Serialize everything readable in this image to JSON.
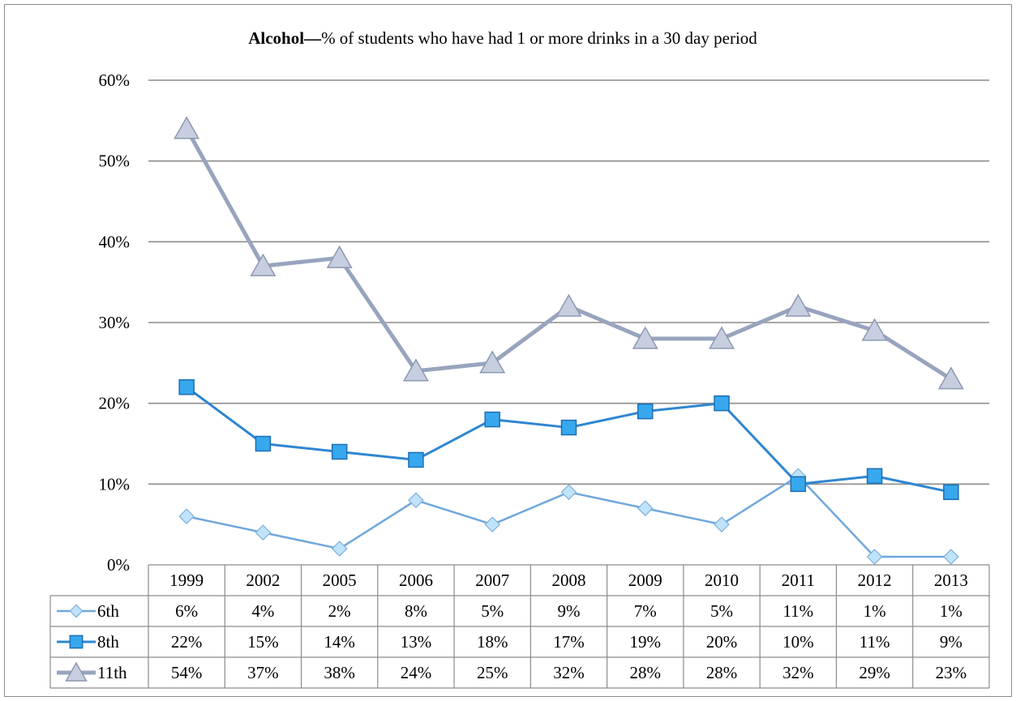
{
  "chart_data": {
    "type": "line",
    "title_bold": "Alcohol",
    "title_dash": "—",
    "title_rest": "% of students who have had 1 or more drinks in a 30 day period",
    "categories": [
      "1999",
      "2002",
      "2005",
      "2006",
      "2007",
      "2008",
      "2009",
      "2010",
      "2011",
      "2012",
      "2013"
    ],
    "ylim": [
      0,
      60
    ],
    "yticks": [
      0,
      10,
      20,
      30,
      40,
      50,
      60
    ],
    "ytick_labels": [
      "0%",
      "10%",
      "20%",
      "30%",
      "40%",
      "50%",
      "60%"
    ],
    "grid": true,
    "legend": "data table",
    "series": [
      {
        "name": "6th",
        "marker": "diamond",
        "line_color": "#6fa8dc",
        "fill_color": "#bfe3fb",
        "line_width": 2.5,
        "values": [
          6,
          4,
          2,
          8,
          5,
          9,
          7,
          5,
          11,
          1,
          1
        ],
        "labels": [
          "6%",
          "4%",
          "2%",
          "8%",
          "5%",
          "9%",
          "7%",
          "5%",
          "11%",
          "1%",
          "1%"
        ]
      },
      {
        "name": "8th",
        "marker": "square",
        "line_color": "#2f86d1",
        "fill_color": "#37a8ee",
        "line_width": 3,
        "values": [
          22,
          15,
          14,
          13,
          18,
          17,
          19,
          20,
          10,
          11,
          9
        ],
        "labels": [
          "22%",
          "15%",
          "14%",
          "13%",
          "18%",
          "17%",
          "19%",
          "20%",
          "10%",
          "11%",
          "9%"
        ]
      },
      {
        "name": "11th",
        "marker": "triangle",
        "line_color": "#98a4bd",
        "fill_color": "#c7cedf",
        "line_width": 5,
        "values": [
          54,
          37,
          38,
          24,
          25,
          32,
          28,
          28,
          32,
          29,
          23
        ],
        "labels": [
          "54%",
          "37%",
          "38%",
          "24%",
          "25%",
          "32%",
          "28%",
          "28%",
          "32%",
          "29%",
          "23%"
        ]
      }
    ]
  }
}
